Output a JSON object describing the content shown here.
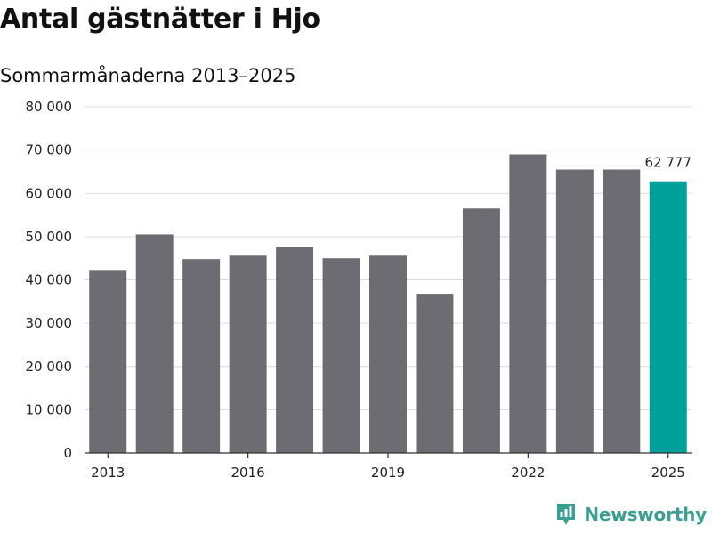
{
  "chart_data": {
    "type": "bar",
    "title": "Antal gästnätter i Hjo",
    "subtitle": "Sommarmånaderna 2013–2025",
    "categories": [
      "2013",
      "2014",
      "2015",
      "2016",
      "2017",
      "2018",
      "2019",
      "2020",
      "2021",
      "2022",
      "2023",
      "2024",
      "2025"
    ],
    "values": [
      42300,
      50500,
      44800,
      45600,
      47700,
      45000,
      45600,
      36800,
      56500,
      69000,
      65500,
      65500,
      62777
    ],
    "x_tick_labels": [
      "2013",
      "2016",
      "2019",
      "2022",
      "2025"
    ],
    "y_ticks": [
      0,
      10000,
      20000,
      30000,
      40000,
      50000,
      60000,
      70000,
      80000
    ],
    "y_tick_labels": [
      "0",
      "10 000",
      "20 000",
      "30 000",
      "40 000",
      "50 000",
      "60 000",
      "70 000",
      "80 000"
    ],
    "ylim": [
      0,
      80000
    ],
    "grid": true,
    "bar_color": "#6d6c73",
    "highlight_color": "#00a19a",
    "highlight_category": "2025",
    "data_labels": [
      {
        "category": "2025",
        "text": "62 777"
      }
    ],
    "xlabel": "",
    "ylabel": ""
  },
  "brand": {
    "name": "Newsworthy",
    "icon": "newsworthy-logo-icon",
    "color": "#3a9e92"
  }
}
